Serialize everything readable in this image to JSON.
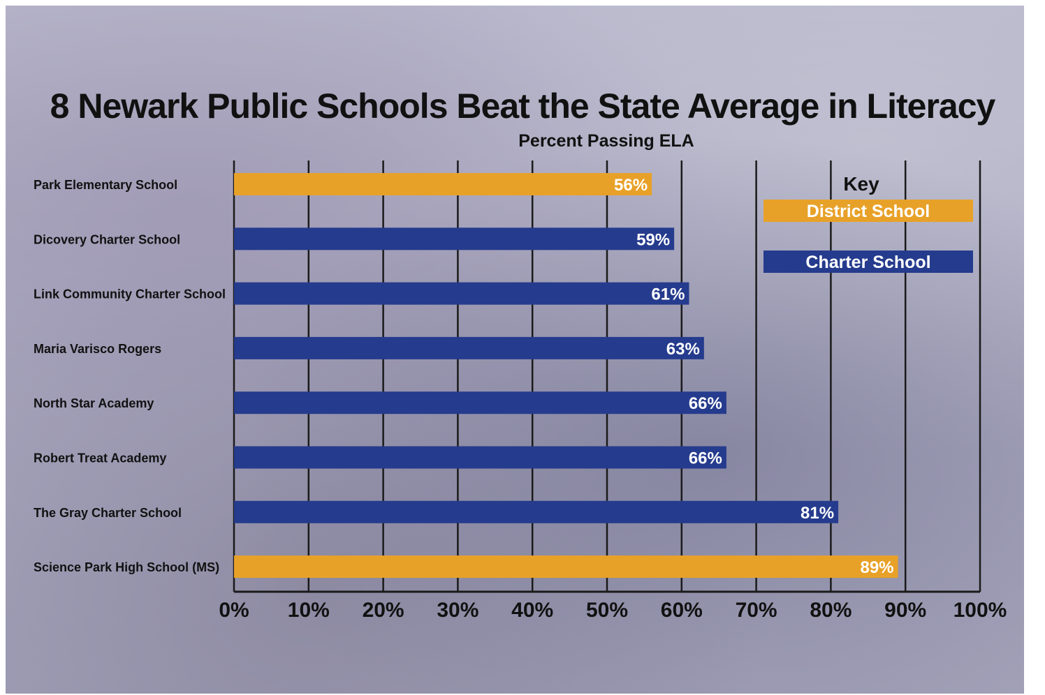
{
  "chart_data": {
    "type": "bar",
    "orientation": "horizontal",
    "title": "8 Newark Public Schools Beat the State Average in Literacy",
    "subtitle": "Percent Passing ELA",
    "categories": [
      "Park Elementary School",
      "Dicovery Charter School",
      "Link Community Charter School",
      "Maria Varisco Rogers",
      "North Star Academy",
      "Robert Treat Academy",
      "The Gray Charter School",
      "Science Park High School (MS)"
    ],
    "values": [
      56,
      59,
      61,
      63,
      66,
      66,
      81,
      89
    ],
    "data_labels": [
      "56%",
      "59%",
      "61%",
      "63%",
      "66%",
      "66%",
      "81%",
      "89%"
    ],
    "school_type": [
      "District School",
      "Charter School",
      "Charter School",
      "Charter School",
      "Charter School",
      "Charter School",
      "Charter School",
      "District School"
    ],
    "xlim": [
      0,
      100
    ],
    "x_ticks": [
      "0%",
      "10%",
      "20%",
      "30%",
      "40%",
      "50%",
      "60%",
      "70%",
      "80%",
      "90%",
      "100%"
    ],
    "grid": "vertical",
    "legend": {
      "title": "Key",
      "placement": "top-right",
      "entries": [
        {
          "label": "District School",
          "color": "#e8a128"
        },
        {
          "label": "Charter School",
          "color": "#253b8d"
        }
      ]
    }
  }
}
